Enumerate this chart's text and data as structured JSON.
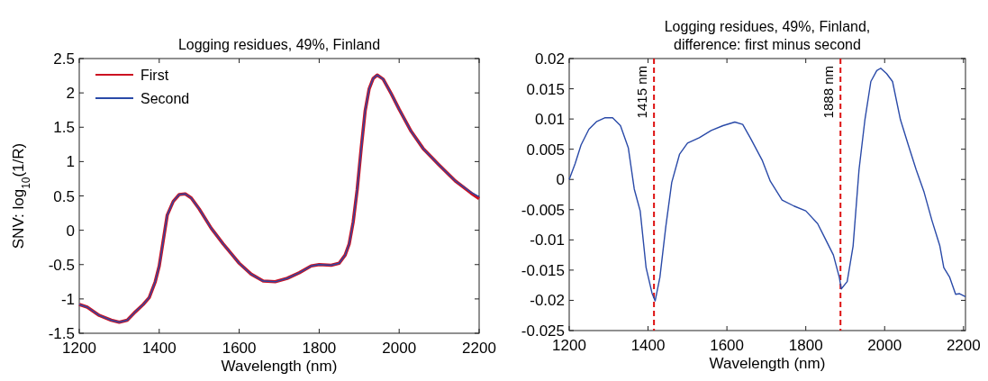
{
  "chart_data": [
    {
      "type": "line",
      "title": "Logging residues, 49%, Finland",
      "xlabel": "Wavelength (nm)",
      "ylabel": "SNV: log$_{10}$(1/R)",
      "xlim": [
        1200,
        2200
      ],
      "xticks": [
        1200,
        1400,
        1600,
        1800,
        2000,
        2200
      ],
      "ylim": [
        -1.5,
        2.5
      ],
      "yticks": [
        -1.5,
        -1,
        -0.5,
        0,
        0.5,
        1,
        1.5,
        2,
        2.5
      ],
      "grid": false,
      "legend": "top left",
      "line_style": "solid",
      "x": [
        1200,
        1220,
        1250,
        1280,
        1300,
        1320,
        1340,
        1360,
        1375,
        1390,
        1400,
        1410,
        1420,
        1435,
        1450,
        1465,
        1480,
        1500,
        1530,
        1560,
        1600,
        1630,
        1660,
        1690,
        1720,
        1750,
        1780,
        1800,
        1830,
        1850,
        1865,
        1875,
        1885,
        1895,
        1905,
        1915,
        1925,
        1935,
        1945,
        1960,
        1980,
        2000,
        2030,
        2060,
        2100,
        2140,
        2180,
        2200
      ],
      "series": [
        {
          "name": "First",
          "color": "#cc1122",
          "values": [
            -1.08,
            -1.12,
            -1.24,
            -1.31,
            -1.34,
            -1.31,
            -1.19,
            -1.08,
            -0.98,
            -0.75,
            -0.52,
            -0.15,
            0.22,
            0.42,
            0.52,
            0.53,
            0.47,
            0.31,
            0.03,
            -0.2,
            -0.48,
            -0.64,
            -0.74,
            -0.75,
            -0.7,
            -0.62,
            -0.52,
            -0.5,
            -0.51,
            -0.48,
            -0.36,
            -0.2,
            0.12,
            0.59,
            1.19,
            1.74,
            2.06,
            2.21,
            2.26,
            2.2,
            1.99,
            1.76,
            1.44,
            1.19,
            0.95,
            0.72,
            0.54,
            0.46
          ]
        },
        {
          "name": "Second",
          "color": "#2a4aa8",
          "values": [
            -1.08,
            -1.12,
            -1.24,
            -1.31,
            -1.34,
            -1.31,
            -1.19,
            -1.08,
            -0.98,
            -0.75,
            -0.52,
            -0.15,
            0.22,
            0.42,
            0.52,
            0.53,
            0.47,
            0.31,
            0.03,
            -0.2,
            -0.48,
            -0.64,
            -0.74,
            -0.75,
            -0.7,
            -0.62,
            -0.52,
            -0.5,
            -0.51,
            -0.48,
            -0.36,
            -0.2,
            0.12,
            0.59,
            1.19,
            1.74,
            2.06,
            2.21,
            2.26,
            2.2,
            1.99,
            1.76,
            1.44,
            1.19,
            0.95,
            0.72,
            0.55,
            0.49
          ]
        }
      ]
    },
    {
      "type": "line",
      "title": "Logging residues, 49%, Finland,\ndifference: first minus second",
      "xlabel": "Wavelength (nm)",
      "xlim": [
        1200,
        2205
      ],
      "xticks": [
        1200,
        1400,
        1600,
        1800,
        2000,
        2200
      ],
      "ylim": [
        -0.025,
        0.02
      ],
      "yticks": [
        -0.025,
        -0.02,
        -0.015,
        -0.01,
        -0.005,
        0,
        0.005,
        0.01,
        0.015,
        0.02
      ],
      "grid": false,
      "line_style": "solid",
      "ref_lines": [
        {
          "axis": "x",
          "value": 1415,
          "label": "1415 nm",
          "color": "#dd1111",
          "line_style": "dashed"
        },
        {
          "axis": "x",
          "value": 1888,
          "label": "1888 nm",
          "color": "#dd1111",
          "line_style": "dashed"
        }
      ],
      "x": [
        1200,
        1215,
        1230,
        1250,
        1270,
        1290,
        1310,
        1330,
        1350,
        1365,
        1380,
        1395,
        1410,
        1418,
        1430,
        1445,
        1460,
        1480,
        1500,
        1530,
        1560,
        1590,
        1620,
        1640,
        1660,
        1690,
        1710,
        1740,
        1770,
        1800,
        1830,
        1850,
        1870,
        1885,
        1890,
        1905,
        1920,
        1935,
        1950,
        1965,
        1980,
        1990,
        2005,
        2020,
        2040,
        2060,
        2080,
        2100,
        2120,
        2140,
        2150,
        2165,
        2180,
        2190,
        2205
      ],
      "series": [
        {
          "color": "#2a4aa8",
          "values": [
            0,
            0.0026,
            0.0057,
            0.0083,
            0.0096,
            0.0102,
            0.0102,
            0.0089,
            0.0052,
            -0.0016,
            -0.0052,
            -0.0146,
            -0.0188,
            -0.0201,
            -0.0162,
            -0.0078,
            -0.0005,
            0.0042,
            0.006,
            0.0069,
            0.0081,
            0.0089,
            0.0095,
            0.0091,
            0.0068,
            0.0031,
            -0.0003,
            -0.0034,
            -0.0044,
            -0.0052,
            -0.0073,
            -0.0099,
            -0.0125,
            -0.0162,
            -0.0181,
            -0.0169,
            -0.011,
            0.0016,
            0.0099,
            0.0162,
            0.018,
            0.0184,
            0.0175,
            0.0162,
            0.0099,
            0.0057,
            0.0016,
            -0.0021,
            -0.0068,
            -0.011,
            -0.0146,
            -0.0162,
            -0.019,
            -0.0189,
            -0.0194
          ]
        }
      ]
    }
  ]
}
